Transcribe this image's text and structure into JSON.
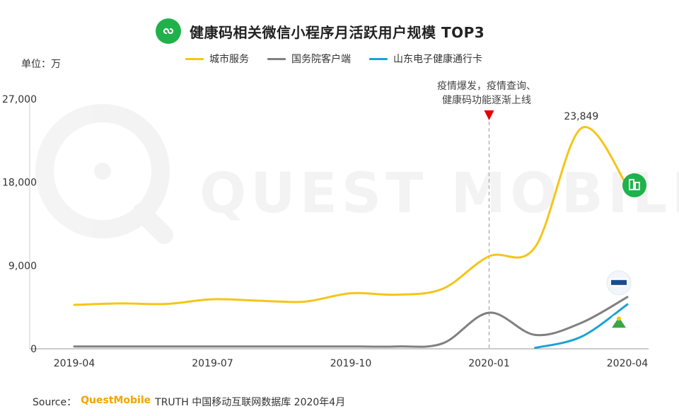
{
  "header": {
    "title": "健康码相关微信小程序月活跃用户规模 TOP3",
    "icon": "mini-program-icon",
    "icon_color": "#1fb24a"
  },
  "unit_label": "单位：万",
  "annotation": {
    "line1": "疫情爆发，疫情查询、",
    "line2": "健康码功能逐渐上线"
  },
  "watermark": "QUEST MOBILE",
  "source": {
    "prefix": "Source：",
    "brand": "QuestMobile",
    "rest": "TRUTH 中国移动互联网数据库 2020年4月"
  },
  "chart_data": {
    "type": "line",
    "title": "健康码相关微信小程序月活跃用户规模 TOP3",
    "ylabel": "万",
    "ylim": [
      0,
      27000
    ],
    "yticks": [
      0,
      9000,
      18000,
      27000
    ],
    "ytick_labels": [
      "0",
      "9,000",
      "18,000",
      "27,000"
    ],
    "x": [
      "2019-04",
      "2019-05",
      "2019-06",
      "2019-07",
      "2019-08",
      "2019-09",
      "2019-10",
      "2019-11",
      "2019-12",
      "2020-01",
      "2020-02",
      "2020-03",
      "2020-04"
    ],
    "xtick_labels": [
      "2019-04",
      "2019-07",
      "2019-10",
      "2020-01",
      "2020-04"
    ],
    "grid": false,
    "legend_position": "top-center",
    "series": [
      {
        "name": "城市服务",
        "color": "#f5c518",
        "values": [
          4750,
          4900,
          4850,
          5350,
          5200,
          5100,
          6000,
          5850,
          6500,
          10000,
          11000,
          23849,
          17600
        ],
        "data_label": "23,849"
      },
      {
        "name": "国务院客户端",
        "color": "#808080",
        "values": [
          250,
          250,
          250,
          250,
          250,
          250,
          250,
          250,
          600,
          3900,
          1500,
          2800,
          5600
        ]
      },
      {
        "name": "山东电子健康通行卡",
        "color": "#1aa3d4",
        "values": [
          null,
          null,
          null,
          null,
          null,
          null,
          null,
          null,
          null,
          null,
          100,
          1300,
          4800
        ]
      }
    ],
    "marker_line_x": "2020-01"
  }
}
